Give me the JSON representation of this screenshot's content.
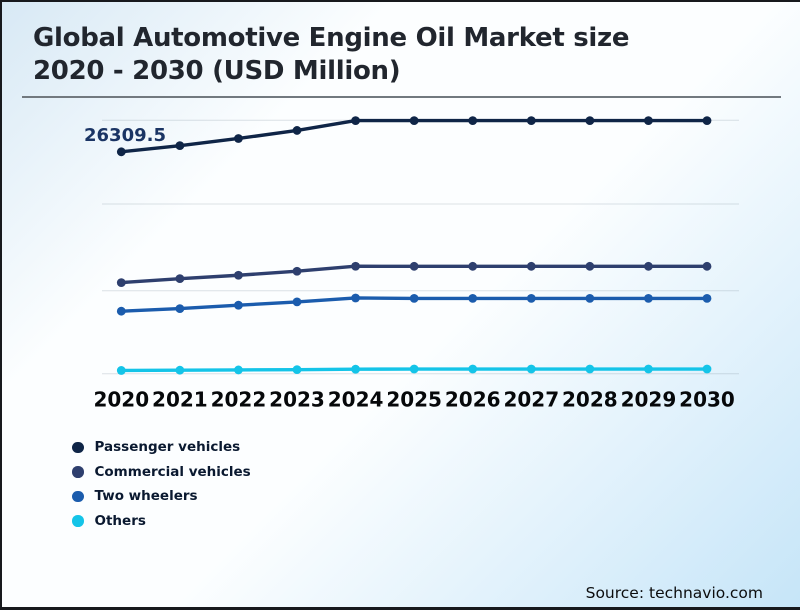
{
  "title_lines": {
    "0": "Global Automotive Engine Oil Market size",
    "1": "2020 - 2030 (USD Million)"
  },
  "annotation": {
    "label": "26309.5",
    "series": "Passenger vehicles",
    "year": "2020"
  },
  "source": {
    "text": "Source: technavio.com"
  },
  "colors": {
    "passenger_vehicles": "#0f2547",
    "commercial_vehicles": "#2e3f6e",
    "two_wheelers": "#1b5cad",
    "others": "#14c4e8",
    "background_tint": "#cfe9f7",
    "frame_border": "#17191d"
  },
  "chart_data": {
    "type": "line",
    "title": "Global Automotive Engine Oil Market size 2020 - 2030 (USD Million)",
    "xlabel": "",
    "ylabel": "USD Million",
    "x": [
      "2020",
      "2021",
      "2022",
      "2023",
      "2024",
      "2025",
      "2026",
      "2027",
      "2028",
      "2029",
      "2030"
    ],
    "ylim": [
      0,
      33000
    ],
    "grid": "faint-horizontal-lines",
    "legend_position": "bottom-left",
    "series": [
      {
        "name": "Passenger vehicles",
        "color": "#0f2547",
        "values": [
          26309.5,
          27000,
          27800,
          28700,
          29800,
          29800,
          29800,
          29800,
          29800,
          29800,
          29800
        ]
      },
      {
        "name": "Commercial vehicles",
        "color": "#2e3f6e",
        "values": [
          11680,
          12120,
          12500,
          12950,
          13510,
          13500,
          13500,
          13500,
          13500,
          13500,
          13500
        ]
      },
      {
        "name": "Two wheelers",
        "color": "#1b5cad",
        "values": [
          8480,
          8770,
          9150,
          9520,
          9960,
          9910,
          9910,
          9910,
          9910,
          9910,
          9910
        ]
      },
      {
        "name": "Others",
        "color": "#14c4e8",
        "values": [
          1850,
          1880,
          1910,
          1940,
          1990,
          2010,
          2010,
          2010,
          2010,
          2010,
          2010
        ]
      }
    ],
    "data_labels": [
      {
        "series": "Passenger vehicles",
        "x": "2020",
        "label": "26309.5"
      }
    ],
    "values_note": "Only the 2020 Passenger vehicles point (26309.5) is labeled on the chart; other values are estimated from point positions."
  }
}
